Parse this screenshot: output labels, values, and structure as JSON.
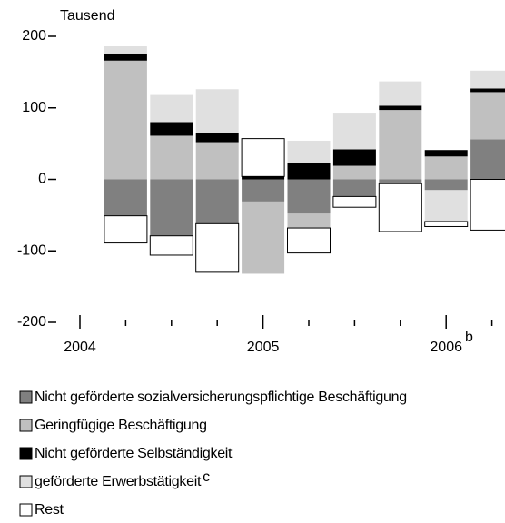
{
  "chart_data": {
    "type": "bar",
    "stacked": true,
    "y_label": "Tausend",
    "categories": [
      "2004",
      null,
      null,
      null,
      "2005",
      null,
      null,
      null,
      "2006",
      null
    ],
    "category_note": "b",
    "ylim": [
      -200,
      200
    ],
    "yticks": [
      -200,
      -100,
      0,
      100,
      200
    ],
    "series": [
      {
        "name": "Nicht geförderte sozialversicherungspflichtige Beschäftigung",
        "color": "#808080",
        "values": [
          null,
          -51,
          -79,
          -62,
          -31,
          -48,
          -24,
          -6,
          -15,
          56
        ]
      },
      {
        "name": "Geringfügige Beschäftigung",
        "color": "#c0c0c0",
        "values": [
          null,
          166,
          61,
          52,
          -101,
          -20,
          19,
          97,
          32,
          66
        ]
      },
      {
        "name": "Nicht geförderte Selbständigkeit",
        "color": "#000000",
        "values": [
          null,
          10,
          19,
          13,
          4,
          23,
          23,
          6,
          9,
          5
        ]
      },
      {
        "name": "geförderte Erwerbstätigkeit",
        "color": "#e0e0e0",
        "values": [
          null,
          10,
          38,
          61,
          0,
          31,
          50,
          34,
          -44,
          25
        ],
        "note": "c"
      },
      {
        "name": "Rest",
        "color": "#ffffff",
        "values": [
          null,
          -38,
          -27,
          -68,
          53,
          -35,
          -15,
          -67,
          -7,
          -71
        ]
      }
    ]
  }
}
